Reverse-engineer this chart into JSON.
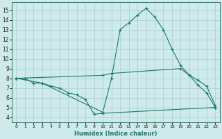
{
  "xlabel": "Humidex (Indice chaleur)",
  "bg_color": "#ceeaea",
  "grid_color": "#aacccc",
  "line_color": "#1a7a6e",
  "xlim": [
    -0.5,
    23.5
  ],
  "ylim": [
    3.5,
    15.8
  ],
  "xticks": [
    0,
    1,
    2,
    3,
    4,
    5,
    6,
    7,
    8,
    9,
    10,
    11,
    12,
    13,
    14,
    15,
    16,
    17,
    18,
    19,
    20,
    21,
    22,
    23
  ],
  "yticks": [
    4,
    5,
    6,
    7,
    8,
    9,
    10,
    11,
    12,
    13,
    14,
    15
  ],
  "lines": [
    {
      "x": [
        0,
        1,
        2,
        3,
        10,
        11,
        12,
        13,
        14,
        15,
        16,
        17,
        18,
        19,
        20,
        21,
        22,
        23
      ],
      "y": [
        8,
        8,
        7.5,
        7.5,
        4.5,
        8.0,
        13.0,
        13.7,
        14.5,
        15.2,
        14.3,
        13.0,
        11.0,
        9.3,
        8.3,
        7.3,
        6.5,
        5.0
      ]
    },
    {
      "x": [
        0,
        10,
        11,
        19,
        20,
        21,
        22,
        23
      ],
      "y": [
        8,
        8.3,
        8.5,
        9.0,
        8.3,
        7.8,
        7.2,
        5.2
      ]
    },
    {
      "x": [
        0,
        3,
        4,
        5,
        6,
        7,
        8,
        9,
        10,
        23
      ],
      "y": [
        8,
        7.5,
        7.2,
        7.0,
        6.5,
        6.3,
        5.8,
        4.3,
        4.4,
        5.0
      ]
    }
  ]
}
